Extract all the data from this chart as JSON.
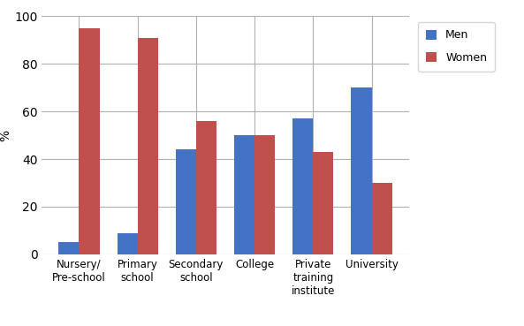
{
  "categories": [
    "Nursery/\nPre-school",
    "Primary\nschool",
    "Secondary\nschool",
    "College",
    "Private\ntraining\ninstitute",
    "University"
  ],
  "men_values": [
    5,
    9,
    44,
    50,
    57,
    70
  ],
  "women_values": [
    95,
    91,
    56,
    50,
    43,
    30
  ],
  "men_color": "#4472C4",
  "women_color": "#C0504D",
  "ylabel": "%",
  "ylim": [
    0,
    100
  ],
  "yticks": [
    0,
    20,
    40,
    60,
    80,
    100
  ],
  "legend_labels": [
    "Men",
    "Women"
  ],
  "bar_width": 0.35,
  "background_color": "#ffffff",
  "grid_color": "#b0b0b0",
  "figsize": [
    5.93,
    3.69
  ],
  "dpi": 100
}
